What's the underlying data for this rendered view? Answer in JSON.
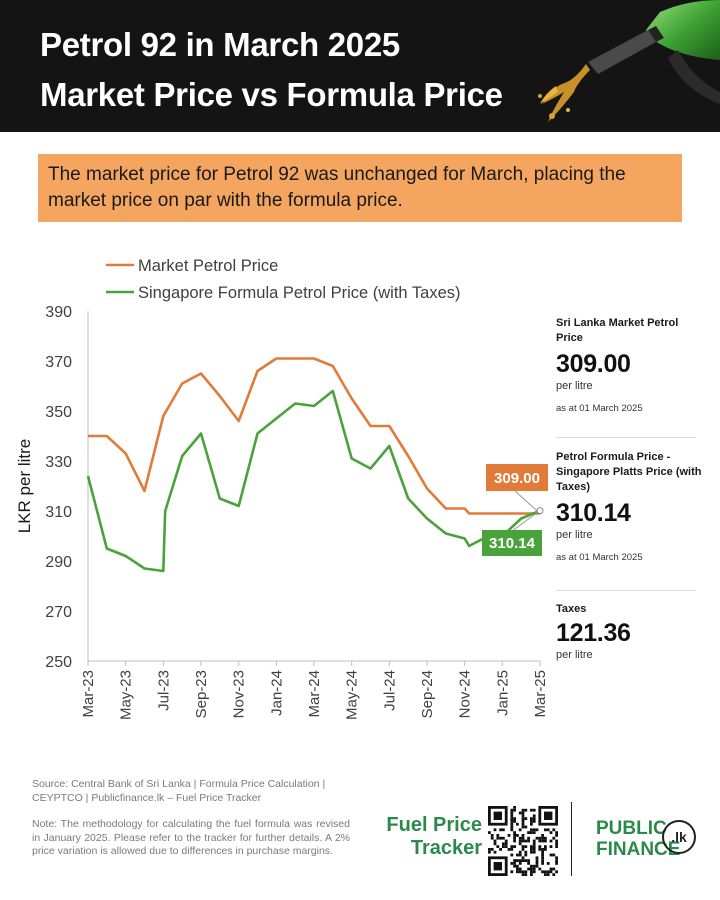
{
  "header": {
    "title_line1": "Petrol 92 in March 2025",
    "title_line2": "Market Price vs Formula Price"
  },
  "banner": {
    "text": "The market price for Petrol 92 was unchanged for March, placing the market price on par with the formula price."
  },
  "chart_data": {
    "type": "line",
    "ylabel": "LKR per litre",
    "ylim": [
      250,
      390
    ],
    "y_ticks": [
      250,
      270,
      290,
      310,
      330,
      350,
      370,
      390
    ],
    "x_tick_labels": [
      "Mar-23",
      "May-23",
      "Jul-23",
      "Sep-23",
      "Nov-23",
      "Jan-24",
      "Mar-24",
      "May-24",
      "Jul-24",
      "Sep-24",
      "Nov-24",
      "Jan-25",
      "Mar-25"
    ],
    "x_range_months": [
      "2023-03",
      "2025-03"
    ],
    "legend_placement": "top-left",
    "series": [
      {
        "name": "Market Petrol Price",
        "color": "#e07b3a",
        "points": [
          [
            "2023-03",
            340
          ],
          [
            "2023-04",
            340
          ],
          [
            "2023-05",
            333
          ],
          [
            "2023-06",
            318
          ],
          [
            "2023-07",
            348
          ],
          [
            "2023-08",
            361
          ],
          [
            "2023-09",
            365
          ],
          [
            "2023-10",
            356
          ],
          [
            "2023-11",
            346
          ],
          [
            "2023-12",
            366
          ],
          [
            "2024-01",
            371
          ],
          [
            "2024-02",
            371
          ],
          [
            "2024-03",
            371
          ],
          [
            "2024-04",
            368
          ],
          [
            "2024-05",
            355
          ],
          [
            "2024-06",
            344
          ],
          [
            "2024-07",
            344
          ],
          [
            "2024-08",
            332
          ],
          [
            "2024-09",
            319
          ],
          [
            "2024-10",
            311
          ],
          [
            "2024-11",
            311
          ],
          [
            "2024-11-07",
            309
          ],
          [
            "2024-12",
            309
          ],
          [
            "2025-01",
            309
          ],
          [
            "2025-02",
            309
          ],
          [
            "2025-03",
            309
          ]
        ],
        "end_label": "309.00"
      },
      {
        "name": "Singapore Formula Petrol Price (with Taxes)",
        "color": "#4aa33a",
        "points": [
          [
            "2023-03",
            324
          ],
          [
            "2023-04",
            295
          ],
          [
            "2023-05",
            292
          ],
          [
            "2023-06",
            287
          ],
          [
            "2023-07",
            286
          ],
          [
            "2023-07-03",
            310
          ],
          [
            "2023-08",
            332
          ],
          [
            "2023-09",
            341
          ],
          [
            "2023-10",
            315
          ],
          [
            "2023-11",
            312
          ],
          [
            "2023-12",
            341
          ],
          [
            "2024-01",
            347
          ],
          [
            "2024-02",
            353
          ],
          [
            "2024-03",
            352
          ],
          [
            "2024-04",
            358
          ],
          [
            "2024-05",
            331
          ],
          [
            "2024-06",
            327
          ],
          [
            "2024-07",
            336
          ],
          [
            "2024-08",
            315
          ],
          [
            "2024-09",
            307
          ],
          [
            "2024-10",
            301
          ],
          [
            "2024-11",
            299
          ],
          [
            "2024-11-07",
            296
          ],
          [
            "2024-12",
            299
          ],
          [
            "2025-01",
            300
          ],
          [
            "2025-02",
            307
          ],
          [
            "2025-03",
            310.14
          ]
        ],
        "end_label": "310.14"
      }
    ]
  },
  "side": {
    "market_label": "Sri Lanka Market Petrol Price",
    "market_value": "309.00",
    "market_unit": "per litre",
    "market_date": "as at 01 March 2025",
    "formula_label": "Petrol Formula Price - Singapore Platts Price (with Taxes)",
    "formula_value": "310.14",
    "formula_unit": "per litre",
    "formula_date": "as at 01 March 2025",
    "taxes_label": "Taxes",
    "taxes_value": "121.36",
    "taxes_unit": "per litre"
  },
  "footer": {
    "source": "Source: Central Bank of Sri Lanka | Formula Price Calculation | CEYPTCO | Publicfinance.lk – Fuel Price Tracker",
    "note": "Note: The methodology for calculating the fuel formula was revised in January 2025. Please refer to the tracker for further details. A 2% price variation is allowed due to differences in purchase margins.",
    "brand_line1": "Fuel Price",
    "brand_line2": "Tracker",
    "pf_line1": "PUBLIC",
    "pf_line2": "FINANCE",
    "pf_badge": ".lk"
  },
  "colors": {
    "header_bg": "#141414",
    "banner_bg": "#f4a55f",
    "market": "#e07b3a",
    "formula": "#4aa33a",
    "brand_green": "#2b8a4a"
  }
}
